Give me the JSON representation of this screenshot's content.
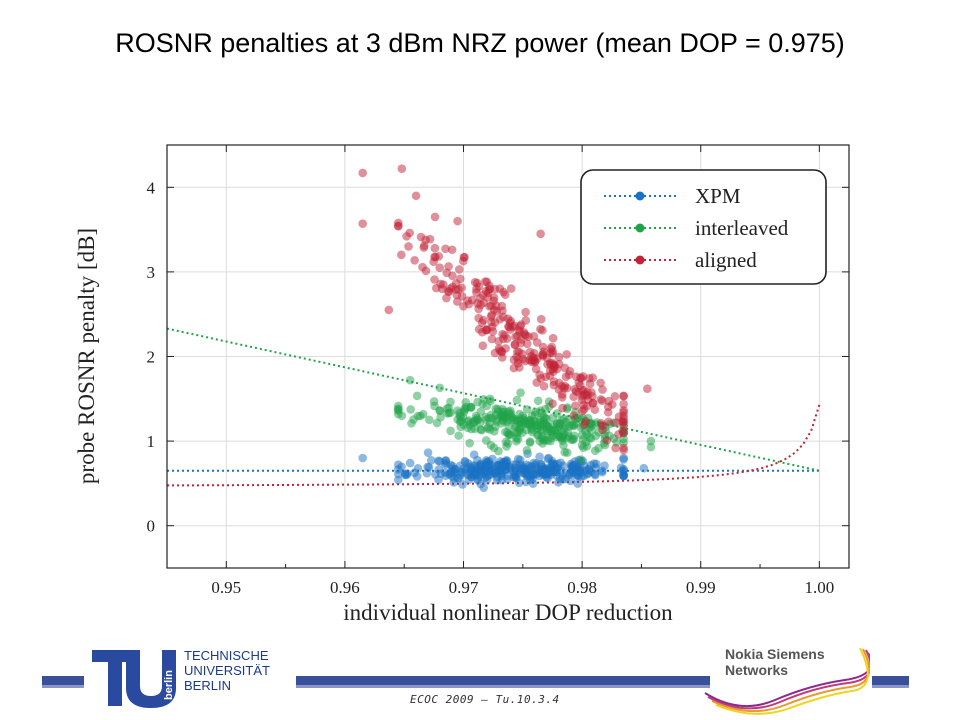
{
  "slide": {
    "title": "ROSNR penalties at 3 dBm NRZ power (mean DOP = 0.975)",
    "footer_ref": "ECOC 2009 – Tu.10.3.4",
    "tu_logo_text": [
      "TECHNISCHE",
      "UNIVERSITÄT",
      "BERLIN"
    ],
    "tu_logo_mark": "berlin",
    "nsn_logo_text": [
      "Nokia Siemens",
      "Networks"
    ],
    "footer_bar_color": "#3a4f9a"
  },
  "chart_data": {
    "type": "scatter",
    "title": "",
    "xlabel": "individual nonlinear DOP reduction",
    "ylabel": "probe ROSNR penalty [dB]",
    "xlim": [
      0.945,
      1.0025
    ],
    "ylim": [
      -0.5,
      4.5
    ],
    "xticks": [
      0.95,
      0.96,
      0.97,
      0.98,
      0.99,
      1.0
    ],
    "xtick_labels": [
      "0.95",
      "0.96",
      "0.97",
      "0.98",
      "0.99",
      "1.00"
    ],
    "yticks": [
      0,
      1,
      2,
      3,
      4
    ],
    "ytick_labels": [
      "0",
      "1",
      "2",
      "3",
      "4"
    ],
    "grid": true,
    "legend_position": "top-right",
    "series": [
      {
        "name": "XPM",
        "color": "#1a72c4",
        "fit_line": {
          "x": [
            0.945,
            1.0
          ],
          "y": [
            0.65,
            0.65
          ]
        },
        "clusters": [
          {
            "n": 330,
            "x_mean": 0.9745,
            "x_sd": 0.0042,
            "y_mean": 0.66,
            "y_sd": 0.07,
            "slope": 0.0,
            "seed": 11
          }
        ],
        "points": [
          [
            0.9615,
            0.8
          ],
          [
            0.9652,
            0.6
          ],
          [
            0.9852,
            0.68
          ],
          [
            0.9655,
            0.74
          ]
        ]
      },
      {
        "name": "interleaved",
        "color": "#1fa34a",
        "fit_line": {
          "x": [
            0.945,
            1.0
          ],
          "y": [
            2.33,
            0.65
          ]
        },
        "clusters": [
          {
            "n": 310,
            "x_mean": 0.975,
            "x_sd": 0.0042,
            "y_mean": 1.2,
            "y_sd": 0.12,
            "slope": -18,
            "seed": 23
          }
        ],
        "points": [
          [
            0.9655,
            1.72
          ],
          [
            0.9648,
            1.3
          ],
          [
            0.9858,
            1.0
          ],
          [
            0.9858,
            0.93
          ],
          [
            0.968,
            1.63
          ]
        ]
      },
      {
        "name": "aligned",
        "color": "#c22136",
        "fit_line": {
          "a": 0.6,
          "b": 0.00147,
          "c": -0.15,
          "x_from": 0.945,
          "x_to": 1.0
        },
        "clusters": [
          {
            "n": 280,
            "x_mean": 0.975,
            "x_sd": 0.0045,
            "y_mean": 2.2,
            "y_sd": 0.2,
            "slope": -120,
            "seed": 37
          }
        ],
        "points": [
          [
            0.9615,
            4.17
          ],
          [
            0.9648,
            4.22
          ],
          [
            0.9615,
            3.57
          ],
          [
            0.966,
            3.9
          ],
          [
            0.9676,
            3.65
          ],
          [
            0.9695,
            3.6
          ],
          [
            0.9765,
            3.45
          ],
          [
            0.9652,
            3.42
          ],
          [
            0.9668,
            3.38
          ],
          [
            0.9637,
            2.55
          ],
          [
            0.9855,
            1.62
          ],
          [
            0.9835,
            1.53
          ]
        ]
      }
    ]
  }
}
